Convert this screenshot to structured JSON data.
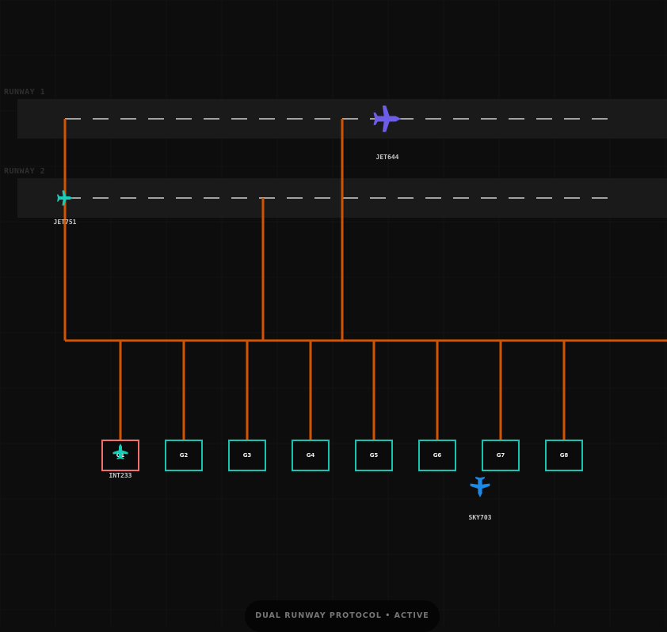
{
  "runways": [
    {
      "label": "RUNWAY 1"
    },
    {
      "label": "RUNWAY 2"
    }
  ],
  "gates": [
    {
      "label": "G1",
      "occupied": true
    },
    {
      "label": "G2",
      "occupied": false
    },
    {
      "label": "G3",
      "occupied": false
    },
    {
      "label": "G4",
      "occupied": false
    },
    {
      "label": "G5",
      "occupied": false
    },
    {
      "label": "G6",
      "occupied": false
    },
    {
      "label": "G7",
      "occupied": false
    },
    {
      "label": "G8",
      "occupied": false
    }
  ],
  "flights": [
    {
      "callsign": "JET644",
      "color": "#6c5ce7",
      "location": "Runway 1",
      "heading": "east"
    },
    {
      "callsign": "JET751",
      "color": "#17cdb8",
      "location": "Runway 2",
      "heading": "east"
    },
    {
      "callsign": "INT233",
      "color": "#17cdb8",
      "location": "G1",
      "heading": "north"
    },
    {
      "callsign": "SKY703",
      "color": "#1e88e5",
      "location": "taxiway",
      "heading": "south"
    }
  ],
  "colors": {
    "taxiway": "#d35400",
    "gate": "#17c4b0",
    "gate_occupied": "#f07070",
    "runway": "#1a1a1a"
  },
  "status": "DUAL RUNWAY PROTOCOL • ACTIVE"
}
